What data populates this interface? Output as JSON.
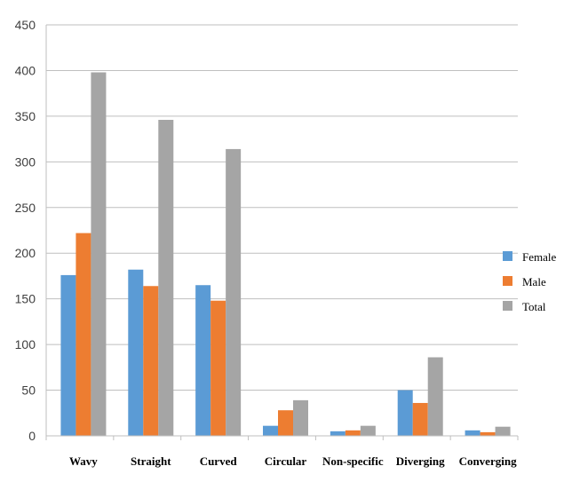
{
  "chart_data": {
    "type": "bar",
    "title": "",
    "xlabel": "",
    "ylabel": "",
    "ylim": [
      0,
      450
    ],
    "yticks": [
      0,
      50,
      100,
      150,
      200,
      250,
      300,
      350,
      400,
      450
    ],
    "grid": true,
    "legend_position": "right",
    "categories": [
      "Wavy",
      "Straight",
      "Curved",
      "Circular",
      "Non-specific",
      "Diverging",
      "Converging"
    ],
    "series": [
      {
        "name": "Female",
        "color": "#5b9bd5",
        "values": [
          176,
          182,
          165,
          11,
          5,
          50,
          6
        ]
      },
      {
        "name": "Male",
        "color": "#ed7d31",
        "values": [
          222,
          164,
          148,
          28,
          6,
          36,
          4
        ]
      },
      {
        "name": "Total",
        "color": "#a5a5a5",
        "values": [
          398,
          346,
          314,
          39,
          11,
          86,
          10
        ]
      }
    ]
  }
}
